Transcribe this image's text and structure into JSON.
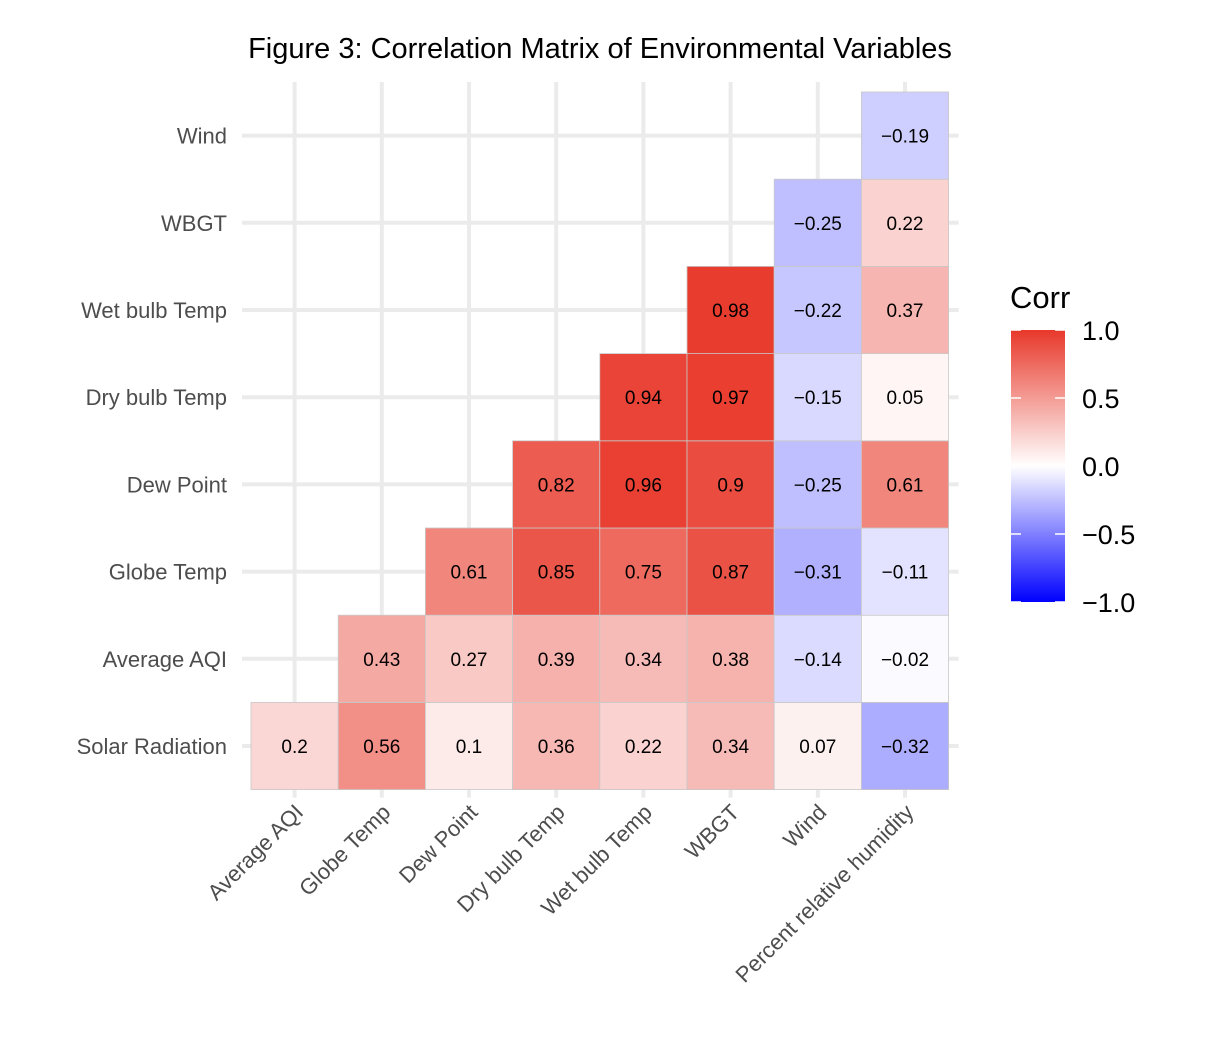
{
  "chart_data": {
    "type": "heatmap",
    "title": "Figure 3: Correlation Matrix of Environmental Variables",
    "x_categories": [
      "Average AQI",
      "Globe Temp",
      "Dew Point",
      "Dry bulb Temp",
      "Wet bulb Temp",
      "WBGT",
      "Wind",
      "Percent relative humidity"
    ],
    "y_categories": [
      "Solar Radiation",
      "Average AQI",
      "Globe Temp",
      "Dew Point",
      "Dry bulb Temp",
      "Wet bulb Temp",
      "WBGT",
      "Wind"
    ],
    "values": [
      [
        0.2,
        0.56,
        0.1,
        0.36,
        0.22,
        0.34,
        0.07,
        -0.32
      ],
      [
        null,
        0.43,
        0.27,
        0.39,
        0.34,
        0.38,
        -0.14,
        -0.02
      ],
      [
        null,
        null,
        0.61,
        0.85,
        0.75,
        0.87,
        -0.31,
        -0.11
      ],
      [
        null,
        null,
        null,
        0.82,
        0.96,
        0.9,
        -0.25,
        0.61
      ],
      [
        null,
        null,
        null,
        null,
        0.94,
        0.97,
        -0.15,
        0.05
      ],
      [
        null,
        null,
        null,
        null,
        null,
        0.98,
        -0.22,
        0.37
      ],
      [
        null,
        null,
        null,
        null,
        null,
        null,
        -0.25,
        0.22
      ],
      [
        null,
        null,
        null,
        null,
        null,
        null,
        null,
        -0.19
      ]
    ],
    "value_labels": [
      [
        "0.2",
        "0.56",
        "0.1",
        "0.36",
        "0.22",
        "0.34",
        "0.07",
        "−0.32"
      ],
      [
        null,
        "0.43",
        "0.27",
        "0.39",
        "0.34",
        "0.38",
        "−0.14",
        "−0.02"
      ],
      [
        null,
        null,
        "0.61",
        "0.85",
        "0.75",
        "0.87",
        "−0.31",
        "−0.11"
      ],
      [
        null,
        null,
        null,
        "0.82",
        "0.96",
        "0.9",
        "−0.25",
        "0.61"
      ],
      [
        null,
        null,
        null,
        null,
        "0.94",
        "0.97",
        "−0.15",
        "0.05"
      ],
      [
        null,
        null,
        null,
        null,
        null,
        "0.98",
        "−0.22",
        "0.37"
      ],
      [
        null,
        null,
        null,
        null,
        null,
        null,
        "−0.25",
        "0.22"
      ],
      [
        null,
        null,
        null,
        null,
        null,
        null,
        null,
        "−0.19"
      ]
    ],
    "legend": {
      "title": "Corr",
      "placement": "right",
      "range": [
        -1,
        1
      ],
      "ticks": [
        1.0,
        0.5,
        0.0,
        -0.5,
        -1.0
      ],
      "tick_labels": [
        "1.0",
        "0.5",
        "0.0",
        "−0.5",
        "−1.0"
      ]
    },
    "colors": {
      "low": "#0000ff",
      "mid": "#ffffff",
      "high": "#e8382a",
      "grid": "#ebebeb",
      "cell_border": "#c8c8c8"
    },
    "grid": true
  }
}
